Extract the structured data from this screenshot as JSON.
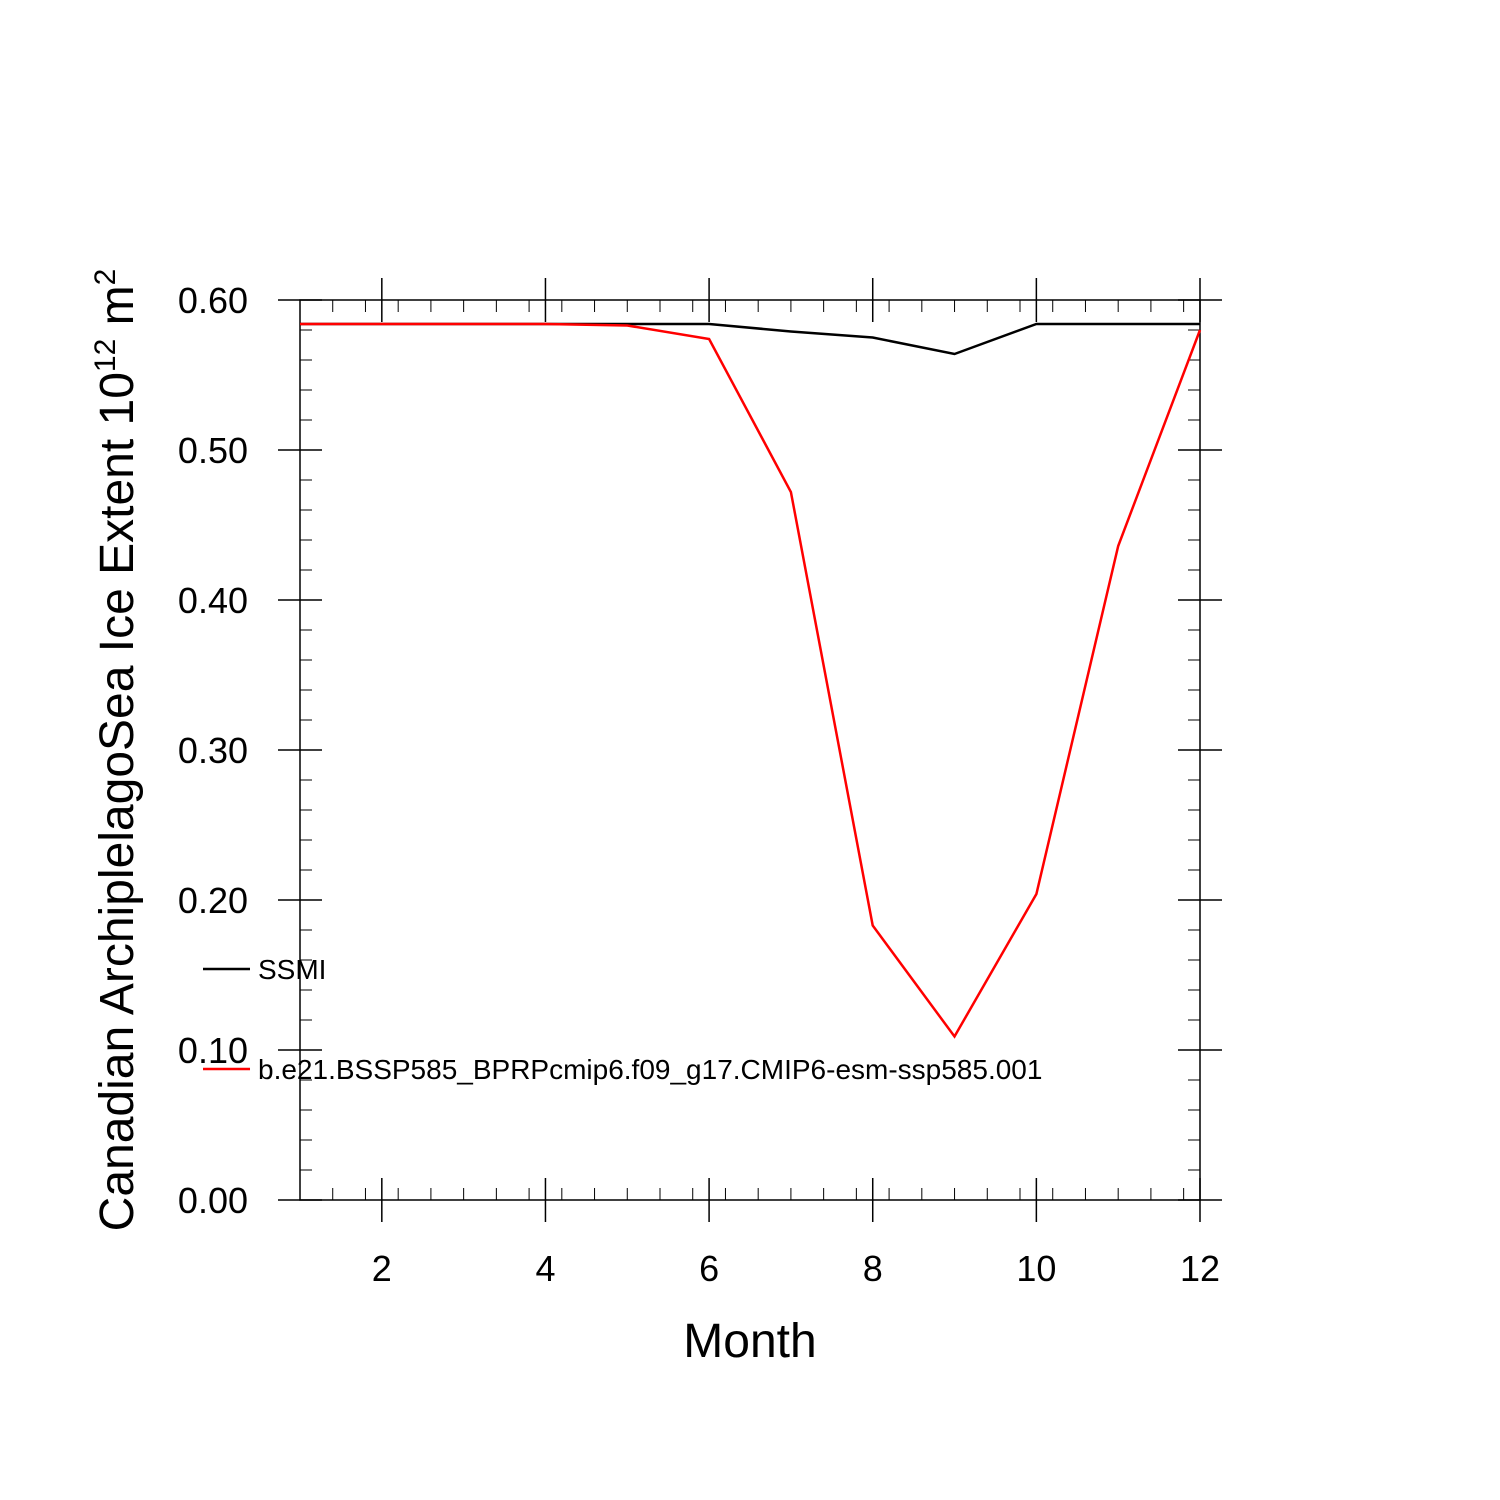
{
  "chart_data": {
    "type": "line",
    "title": "",
    "xlabel": "Month",
    "ylabel": {
      "main": "Canadian ArchiplelagoSea Ice Extent 10",
      "sup1": "12",
      "unit": " m",
      "sup2": "2"
    },
    "xlim": [
      1,
      12
    ],
    "ylim": [
      0,
      0.6
    ],
    "xticks": [
      2,
      4,
      6,
      8,
      10,
      12
    ],
    "yticks": [
      "0.00",
      "0.10",
      "0.20",
      "0.30",
      "0.40",
      "0.50",
      "0.60"
    ],
    "x": [
      1,
      2,
      3,
      4,
      5,
      6,
      7,
      8,
      9,
      10,
      11,
      12
    ],
    "series": [
      {
        "name": "SSMI",
        "color": "#000000",
        "values": [
          0.584,
          0.584,
          0.584,
          0.584,
          0.584,
          0.584,
          0.579,
          0.575,
          0.564,
          0.584,
          0.584,
          0.584
        ]
      },
      {
        "name": "b.e21.BSSP585_BPRPcmip6.f09_g17.CMIP6-esm-ssp585.001",
        "color": "#ff0000",
        "values": [
          0.584,
          0.584,
          0.584,
          0.584,
          0.583,
          0.574,
          0.472,
          0.183,
          0.109,
          0.204,
          0.436,
          0.58
        ]
      }
    ],
    "grid": false,
    "legend_position": "inside-left"
  }
}
